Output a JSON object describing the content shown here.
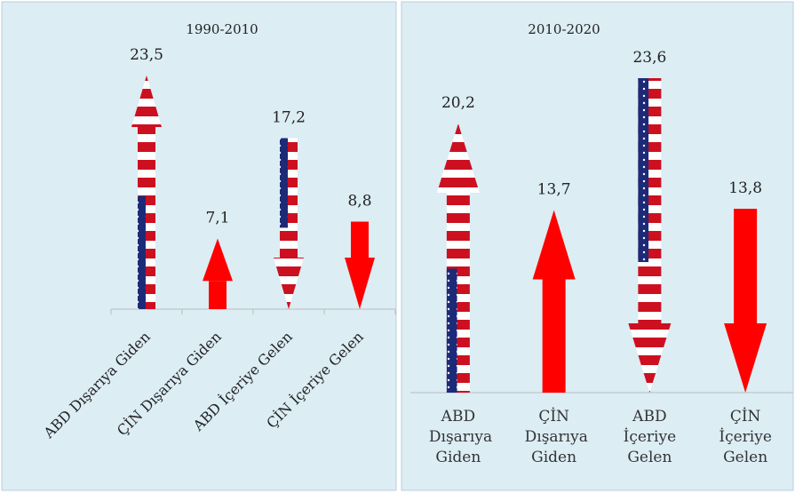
{
  "chart_data": [
    {
      "type": "arrow",
      "title": "1990-2010",
      "categories": [
        "ABD Dışarıya Giden",
        "ÇİN Dışarıya Giden",
        "ABD İçeriye Gelen",
        "ÇİN İçeriye Gelen"
      ],
      "values": [
        23.5,
        7.1,
        17.2,
        8.8
      ],
      "value_labels": [
        "23,5",
        "7,1",
        "17,2",
        "8,8"
      ],
      "directions": [
        "up",
        "up",
        "down",
        "down"
      ],
      "patterns": [
        "stripes",
        "solid",
        "stripes",
        "solid"
      ],
      "colors": [
        "#cc1020",
        "#ff0000",
        "#cc1020",
        "#ff0000"
      ]
    },
    {
      "type": "arrow",
      "title": "2010-2020",
      "categories": [
        "ABD Dışarıya Giden",
        "ÇİN Dışarıya Giden",
        "ABD İçeriye Gelen",
        "ÇİN İçeriye Gelen"
      ],
      "values": [
        20.2,
        13.7,
        23.6,
        13.8
      ],
      "value_labels": [
        "20,2",
        "13,7",
        "23,6",
        "13,8"
      ],
      "directions": [
        "up",
        "up",
        "down",
        "down"
      ],
      "patterns": [
        "stripes",
        "solid",
        "stripes",
        "solid"
      ],
      "colors": [
        "#cc1020",
        "#ff0000",
        "#cc1020",
        "#ff0000"
      ]
    }
  ]
}
